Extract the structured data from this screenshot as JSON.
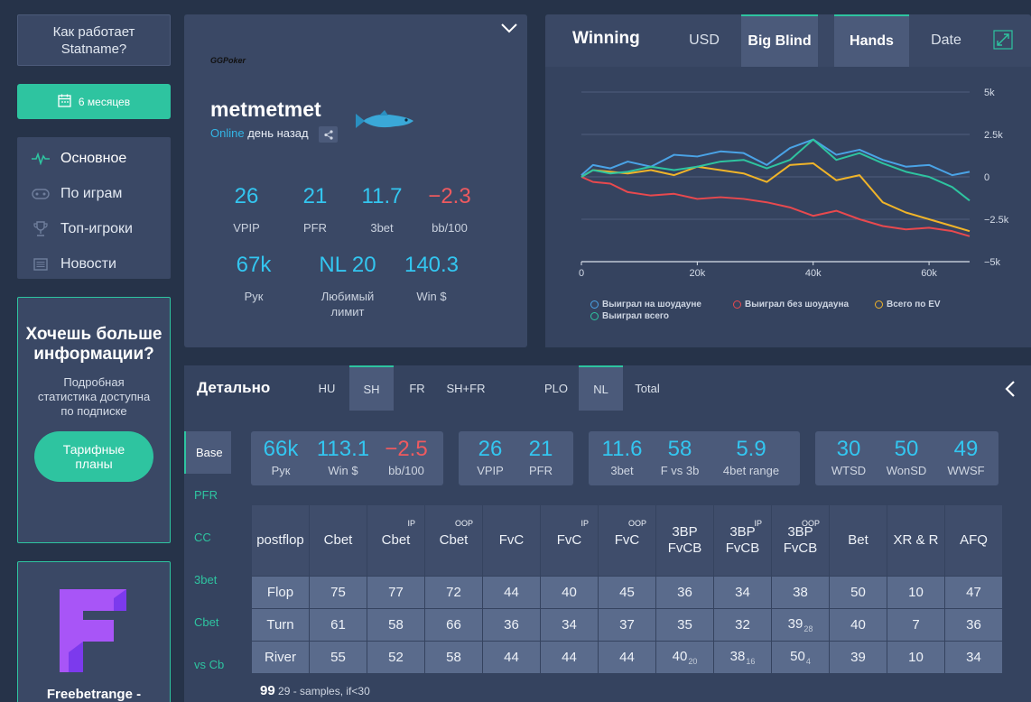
{
  "sidebar": {
    "how_label": "Как работает Statname?",
    "period_label": "6 месяцев",
    "nav": [
      {
        "label": "Основное",
        "icon": "pulse-icon"
      },
      {
        "label": "По играм",
        "icon": "gamepad-icon"
      },
      {
        "label": "Топ-игроки",
        "icon": "trophy-icon"
      },
      {
        "label": "Новости",
        "icon": "news-icon"
      }
    ],
    "promo": {
      "title": "Хочешь больше информации?",
      "text": "Подробная статистика доступна по подписке",
      "button": "Тарифные планы"
    },
    "freebetrange_title": "Freebetrange -"
  },
  "profile": {
    "room_logo": "GGPoker",
    "name": "metmetmet",
    "status": "Online",
    "last_seen": "день назад",
    "stats": [
      {
        "value": "26",
        "label": "VPIP"
      },
      {
        "value": "21",
        "label": "PFR"
      },
      {
        "value": "11.7",
        "label": "3bet"
      },
      {
        "value": "−2.3",
        "label": "bb/100",
        "negative": true
      },
      {
        "value": "67k",
        "label": "Рук"
      },
      {
        "value": "NL 20",
        "label": "Любимый лимит"
      },
      {
        "value": "140.3",
        "label": "Win $"
      }
    ]
  },
  "winning": {
    "title": "Winning",
    "tabs": [
      {
        "label": "USD",
        "active": false
      },
      {
        "label": "Big Blind",
        "active": true
      },
      {
        "label": "Hands",
        "active": true
      },
      {
        "label": "Date",
        "active": false
      }
    ],
    "legend": [
      {
        "label": "Выиграл на шоудауне",
        "color": "#4aa3e6"
      },
      {
        "label": "Выиграл без шоудауна",
        "color": "#e8494e"
      },
      {
        "label": "Всего по EV",
        "color": "#f0b429"
      },
      {
        "label": "Выиграл всего",
        "color": "#2ec4a0"
      }
    ]
  },
  "chart_data": {
    "type": "line",
    "x_ticks": [
      "0",
      "20k",
      "40k",
      "60k"
    ],
    "y_ticks": [
      "5k",
      "2.5k",
      "0",
      "−2.5k",
      "−5k"
    ],
    "xlim": [
      0,
      67000
    ],
    "ylim": [
      -5000,
      5000
    ],
    "x": [
      0,
      2000,
      5000,
      8000,
      12000,
      16000,
      20000,
      24000,
      28000,
      32000,
      36000,
      40000,
      44000,
      48000,
      52000,
      56000,
      60000,
      64000,
      67000
    ],
    "series": [
      {
        "name": "Выиграл на шоудауне",
        "color": "#4aa3e6",
        "values": [
          100,
          700,
          500,
          900,
          600,
          1300,
          1200,
          1500,
          1400,
          700,
          1700,
          2200,
          1300,
          1600,
          1000,
          600,
          700,
          100,
          300
        ]
      },
      {
        "name": "Выиграл без шоудауна",
        "color": "#e8494e",
        "values": [
          0,
          -300,
          -400,
          -900,
          -1100,
          -1000,
          -1300,
          -1200,
          -1300,
          -1500,
          -1800,
          -2300,
          -2000,
          -2500,
          -2900,
          -3100,
          -3000,
          -3200,
          -3500
        ]
      },
      {
        "name": "Всего по EV",
        "color": "#f0b429",
        "values": [
          0,
          400,
          300,
          200,
          400,
          100,
          600,
          400,
          200,
          -300,
          700,
          800,
          -200,
          100,
          -1500,
          -2100,
          -2500,
          -2900,
          -3200
        ]
      },
      {
        "name": "Выиграл всего",
        "color": "#2ec4a0",
        "values": [
          0,
          400,
          200,
          300,
          600,
          400,
          600,
          900,
          1000,
          500,
          1000,
          2200,
          1000,
          1400,
          800,
          300,
          0,
          -600,
          -1400
        ]
      }
    ]
  },
  "detail": {
    "title": "Детально",
    "tabs": [
      "HU",
      "SH",
      "FR",
      "SH+FR",
      "PLO",
      "NL",
      "Total"
    ],
    "side_tabs": [
      "Base",
      "PFR",
      "CC",
      "3bet",
      "Cbet",
      "vs Cb"
    ],
    "groups": [
      [
        {
          "value": "66k",
          "label": "Рук"
        },
        {
          "value": "113.1",
          "label": "Win $"
        },
        {
          "value": "−2.5",
          "label": "bb/100",
          "negative": true
        }
      ],
      [
        {
          "value": "26",
          "label": "VPIP"
        },
        {
          "value": "21",
          "label": "PFR"
        }
      ],
      [
        {
          "value": "11.6",
          "label": "3bet"
        },
        {
          "value": "58",
          "label": "F vs 3b"
        },
        {
          "value": "5.9",
          "label": "4bet range"
        }
      ],
      [
        {
          "value": "30",
          "label": "WTSD"
        },
        {
          "value": "50",
          "label": "WonSD"
        },
        {
          "value": "49",
          "label": "WWSF"
        }
      ]
    ],
    "table": {
      "headers": [
        {
          "l1": "postflop",
          "l2": "",
          "sup": ""
        },
        {
          "l1": "Cbet",
          "l2": "",
          "sup": ""
        },
        {
          "l1": "Cbet",
          "l2": "",
          "sup": "IP"
        },
        {
          "l1": "Cbet",
          "l2": "",
          "sup": "OOP"
        },
        {
          "l1": "FvC",
          "l2": "",
          "sup": ""
        },
        {
          "l1": "FvC",
          "l2": "",
          "sup": "IP"
        },
        {
          "l1": "FvC",
          "l2": "",
          "sup": "OOP"
        },
        {
          "l1": "3BP",
          "l2": "FvCB",
          "sup": ""
        },
        {
          "l1": "3BP",
          "l2": "FvCB",
          "sup": "IP"
        },
        {
          "l1": "3BP",
          "l2": "FvCB",
          "sup": "OOP"
        },
        {
          "l1": "Bet",
          "l2": "",
          "sup": ""
        },
        {
          "l1": "XR & R",
          "l2": "",
          "sup": ""
        },
        {
          "l1": "AFQ",
          "l2": "",
          "sup": ""
        }
      ],
      "rows": [
        {
          "street": "Flop",
          "cells": [
            {
              "v": "75"
            },
            {
              "v": "77"
            },
            {
              "v": "72"
            },
            {
              "v": "44"
            },
            {
              "v": "40"
            },
            {
              "v": "45"
            },
            {
              "v": "36"
            },
            {
              "v": "34"
            },
            {
              "v": "38"
            },
            {
              "v": "50"
            },
            {
              "v": "10"
            },
            {
              "v": "47"
            }
          ]
        },
        {
          "street": "Turn",
          "cells": [
            {
              "v": "61"
            },
            {
              "v": "58"
            },
            {
              "v": "66"
            },
            {
              "v": "36"
            },
            {
              "v": "34"
            },
            {
              "v": "37"
            },
            {
              "v": "35"
            },
            {
              "v": "32"
            },
            {
              "v": "39",
              "s": "28"
            },
            {
              "v": "40"
            },
            {
              "v": "7"
            },
            {
              "v": "36"
            }
          ]
        },
        {
          "street": "River",
          "cells": [
            {
              "v": "55"
            },
            {
              "v": "52"
            },
            {
              "v": "58"
            },
            {
              "v": "44"
            },
            {
              "v": "44"
            },
            {
              "v": "44"
            },
            {
              "v": "40",
              "s": "20"
            },
            {
              "v": "38",
              "s": "16"
            },
            {
              "v": "50",
              "s": "4"
            },
            {
              "v": "39"
            },
            {
              "v": "10"
            },
            {
              "v": "34"
            }
          ]
        }
      ]
    },
    "footnote_sample": "99",
    "footnote_text": "29 - samples, if<30"
  }
}
